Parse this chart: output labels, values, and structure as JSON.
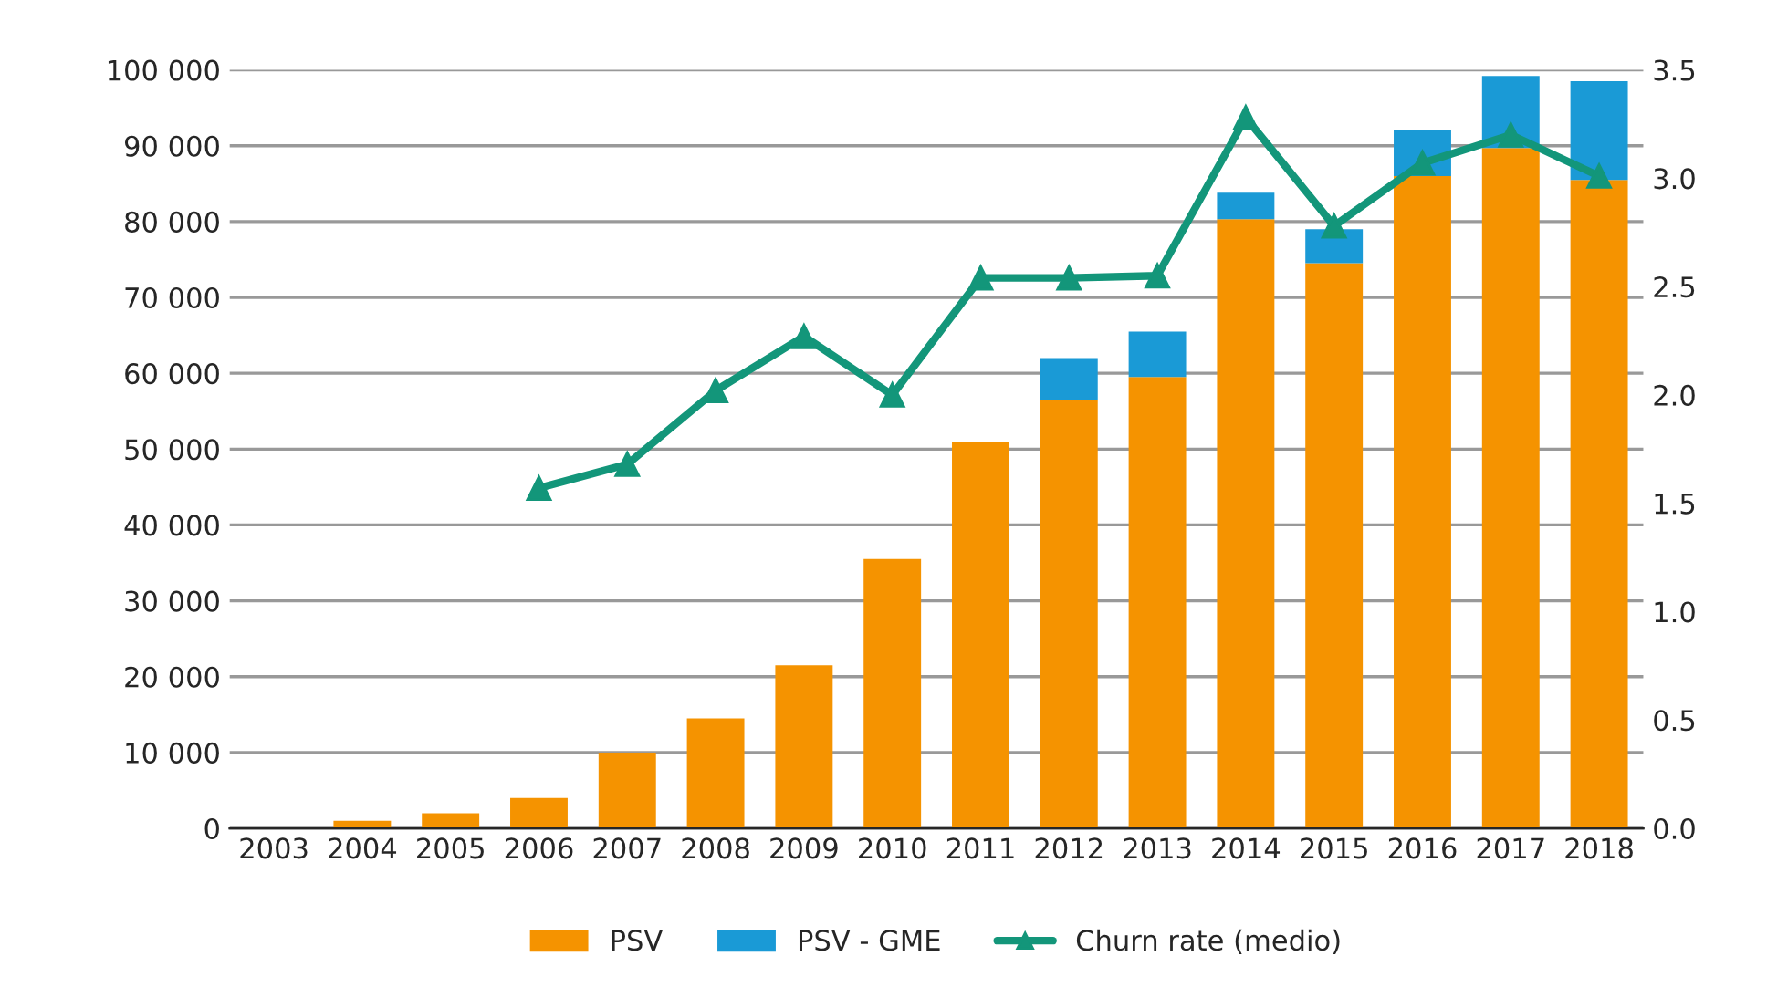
{
  "chart_data": {
    "type": "bar",
    "stacked": true,
    "categories": [
      "2003",
      "2004",
      "2005",
      "2006",
      "2007",
      "2008",
      "2009",
      "2010",
      "2011",
      "2012",
      "2013",
      "2014",
      "2015",
      "2016",
      "2017",
      "2018"
    ],
    "series": [
      {
        "name": "PSV",
        "color": "#f59300",
        "values": [
          0,
          1000,
          2000,
          4000,
          10000,
          14500,
          21500,
          35500,
          51000,
          56500,
          59500,
          80300,
          74500,
          86000,
          89700,
          85500
        ]
      },
      {
        "name": "PSV - GME",
        "color": "#1a9ad6",
        "values": [
          null,
          null,
          null,
          null,
          null,
          null,
          null,
          null,
          null,
          5500,
          6000,
          3500,
          4500,
          6000,
          9500,
          13000
        ]
      },
      {
        "name": "Churn rate (medio)",
        "type": "line",
        "axis": "y2",
        "color": "#13967a",
        "marker": "triangle",
        "values": [
          null,
          null,
          null,
          1.57,
          1.68,
          2.02,
          2.27,
          2.0,
          2.54,
          2.54,
          2.55,
          3.28,
          2.78,
          3.07,
          3.2,
          3.01
        ]
      }
    ],
    "ylim": [
      0,
      100000
    ],
    "yticks": [
      0,
      {
        "value": 10000,
        "label": "10 000"
      },
      {
        "value": 20000,
        "label": "20 000"
      },
      {
        "value": 30000,
        "label": "30 000"
      },
      {
        "value": 40000,
        "label": "40 000"
      },
      {
        "value": 50000,
        "label": "50 000"
      },
      {
        "value": 60000,
        "label": "60 000"
      },
      {
        "value": 70000,
        "label": "70 000"
      },
      {
        "value": 80000,
        "label": "80 000"
      },
      {
        "value": 90000,
        "label": "90 000"
      },
      {
        "value": 100000,
        "label": "100 000"
      }
    ],
    "y2lim": [
      0,
      3.5
    ],
    "y2ticks": [
      {
        "value": 0,
        "label": "0.0"
      },
      0.5,
      {
        "value": 1,
        "label": "1.0"
      },
      1.5,
      {
        "value": 2,
        "label": "2.0"
      },
      2.5,
      {
        "value": 3,
        "label": "3.0"
      },
      3.5
    ],
    "grid": "y",
    "legend": "bottom"
  }
}
